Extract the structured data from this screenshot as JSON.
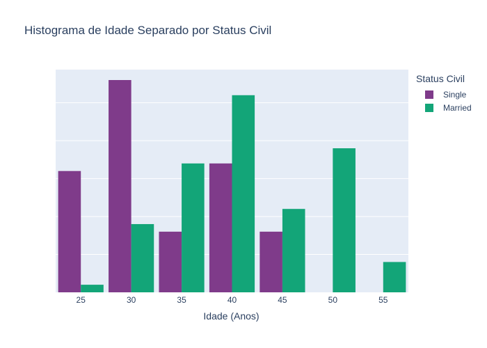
{
  "chart_data": {
    "type": "bar",
    "title": "Histograma de Idade Separado por Status Civil",
    "xlabel": "Idade (Anos)",
    "ylabel": "",
    "categories": [
      "25",
      "30",
      "35",
      "40",
      "45",
      "50",
      "55"
    ],
    "y_ticks_shown": false,
    "ylim": [
      0,
      28
    ],
    "grid": true,
    "legend": {
      "title": "Status Civil",
      "placement": "right"
    },
    "series": [
      {
        "name": "Single",
        "color": "#7f3b8a",
        "values": [
          16,
          28,
          8,
          17,
          8,
          0,
          0
        ]
      },
      {
        "name": "Married",
        "color": "#13a578",
        "values": [
          1,
          9,
          17,
          26,
          11,
          19,
          4
        ]
      }
    ],
    "colors": {
      "plot_bg": "#e5ecf6",
      "grid": "#ffffff",
      "text": "#2a3f5f"
    }
  }
}
